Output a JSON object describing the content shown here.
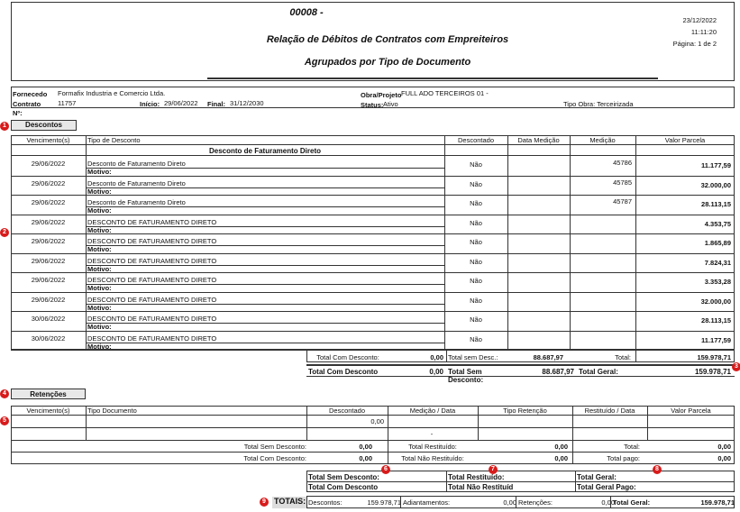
{
  "header": {
    "code": "00008 -",
    "title": "Relação de Débitos de Contratos com Empreiteiros",
    "subtitle": "Agrupados por Tipo de Documento",
    "date": "23/12/2022",
    "time": "11:11:20",
    "page": "Página: 1 de 2"
  },
  "info": {
    "supplier_label": "Fornecedo",
    "supplier": "Formafix Industria e Comercio Ltda.",
    "contract_label": "Contrato",
    "contract": "11757",
    "start_label": "Início:",
    "start": "29/06/2022",
    "end_label": "Final:",
    "end": "31/12/2030",
    "number_label": "Nº:",
    "project_label": "Obra/Projeto",
    "project": "FULL ADO TERCEIROS 01 -",
    "status_label": "Status:",
    "status": "Ativo",
    "work_type": "Tipo Obra: Terceirizada"
  },
  "markers": [
    "1",
    "2",
    "3",
    "4",
    "5",
    "6",
    "7",
    "8",
    "9"
  ],
  "discounts": {
    "title": "Descontos",
    "columns": [
      "Vencimento(s)",
      "Tipo de Desconto",
      "Descontado",
      "Data Medição",
      "Medição",
      "Valor Parcela"
    ],
    "group": "Desconto de Faturamento Direto",
    "motive_label": "Motivo:",
    "rows": [
      [
        "29/06/2022",
        "Desconto de Faturamento Direto",
        "Não",
        "45786",
        "11.177,59"
      ],
      [
        "29/06/2022",
        "Desconto de Faturamento Direto",
        "Não",
        "45785",
        "32.000,00"
      ],
      [
        "29/06/2022",
        "Desconto de Faturamento Direto",
        "Não",
        "45787",
        "28.113,15"
      ],
      [
        "29/06/2022",
        "DESCONTO DE FATURAMENTO DIRETO",
        "Não",
        null,
        "4.353,75"
      ],
      [
        "29/06/2022",
        "DESCONTO DE FATURAMENTO DIRETO",
        "Não",
        null,
        "1.865,89"
      ],
      [
        "29/06/2022",
        "DESCONTO DE FATURAMENTO DIRETO",
        "Não",
        null,
        "7.824,31"
      ],
      [
        "29/06/2022",
        "DESCONTO DE FATURAMENTO DIRETO",
        "Não",
        null,
        "3.353,28"
      ],
      [
        "29/06/2022",
        "DESCONTO DE FATURAMENTO DIRETO",
        "Não",
        null,
        "32.000,00"
      ],
      [
        "30/06/2022",
        "DESCONTO DE FATURAMENTO DIRETO",
        "Não",
        null,
        "28.113,15"
      ],
      [
        "30/06/2022",
        "DESCONTO DE FATURAMENTO DIRETO",
        "Não",
        null,
        "11.177,59"
      ]
    ],
    "totals": [
      "Total Com Desconto:",
      "0,00",
      "Total sem Desc.:",
      "88.687,97",
      "Total:",
      "159.978,71"
    ],
    "grand": [
      "Total Com Desconto",
      "0,00",
      "Total Sem Desconto:",
      "88.687,97",
      "Total Geral:",
      "159.978,71"
    ]
  },
  "retentions": {
    "title": "Retenções",
    "columns": [
      "Vencimento(s)",
      "Tipo Documento",
      "Descontado",
      "Medição / Data",
      "Tipo Retenção",
      "Restituído / Data",
      "Valor Parcela"
    ],
    "rows": [
      [
        null,
        null,
        "0,00",
        null,
        null,
        null,
        null
      ],
      [
        null,
        null,
        null,
        "-",
        null,
        null,
        null
      ]
    ],
    "totals": [
      [
        "Total Sem Desconto:",
        "0,00",
        "Total Restituído:",
        "0,00",
        "Total:",
        "0,00"
      ],
      [
        "Total Com Desconto:",
        "0,00",
        "Total Não Restituído:",
        "0,00",
        "Total pago:",
        "0,00"
      ]
    ],
    "summary": [
      [
        "Total Sem Desconto:",
        "Total Restituído:",
        "Total Geral:"
      ],
      [
        "Total Com Desconto",
        "Total Não Restituíd",
        "Total Geral Pago:"
      ]
    ]
  },
  "totals": {
    "label": "TOTAIS:",
    "items": [
      {
        "label": "Descontos:",
        "value": "159.978,71"
      },
      {
        "label": "Adiantamentos:",
        "value": "0,00"
      },
      {
        "label": "Retenções:",
        "value": "0,00"
      },
      {
        "label": "Total Geral:",
        "value": "159.978,71"
      }
    ]
  }
}
